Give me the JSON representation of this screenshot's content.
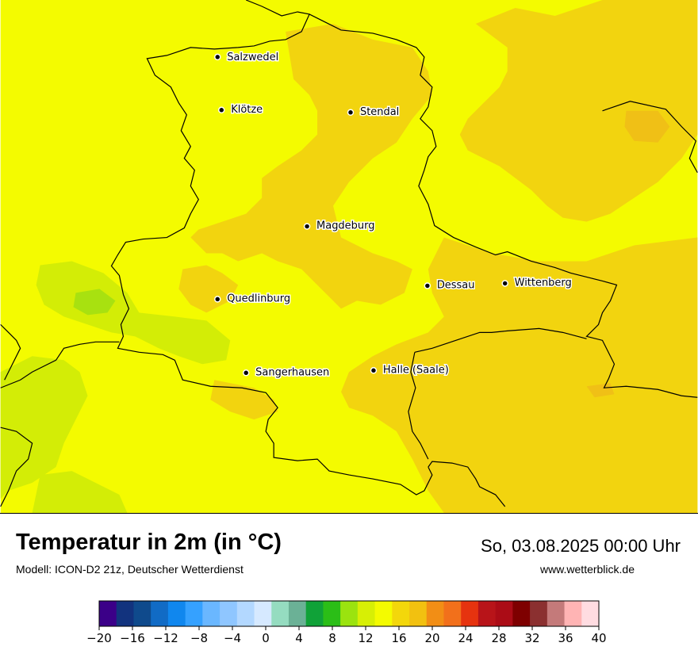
{
  "map": {
    "title": "Temperatur in 2m (in °C)",
    "model_line": "Modell: ICON-D2 21z, Deutscher Wetterdienst",
    "valid_time": "So, 03.08.2025 00:00 Uhr",
    "website": "www.wetterblick.de",
    "colors": {
      "t14_16": "#f4fb00",
      "t16_18": "#f2d40f",
      "t18_20": "#f0c016",
      "t12_14": "#d3ed06",
      "t10_12": "#a8e110",
      "border": "#000000"
    },
    "cities": [
      {
        "name": "Salzwedel",
        "icon": "city-dot-icon"
      },
      {
        "name": "Klötze",
        "icon": "city-dot-icon"
      },
      {
        "name": "Stendal",
        "icon": "city-dot-icon"
      },
      {
        "name": "Magdeburg",
        "icon": "city-dot-icon"
      },
      {
        "name": "Dessau",
        "icon": "city-dot-icon"
      },
      {
        "name": "Wittenberg",
        "icon": "city-dot-icon"
      },
      {
        "name": "Quedlinburg",
        "icon": "city-dot-icon"
      },
      {
        "name": "Sangerhausen",
        "icon": "city-dot-icon"
      },
      {
        "name": "Halle (Saale)",
        "icon": "city-dot-icon"
      }
    ]
  },
  "legend": {
    "unit": "°C",
    "range": [
      -20,
      40
    ],
    "step": 2,
    "colors": [
      "#3b0088",
      "#12337e",
      "#0f4a8c",
      "#116bc5",
      "#1087ee",
      "#35a1ff",
      "#6ab7ff",
      "#8fc6ff",
      "#b3d8ff",
      "#d6e9ff",
      "#95dcc0",
      "#6bb196",
      "#10a238",
      "#2bbe17",
      "#9be30f",
      "#d7ef05",
      "#f4fb00",
      "#f3d70b",
      "#f2c110",
      "#f28e15",
      "#f2701b",
      "#e6330f",
      "#b81419",
      "#ab0c16",
      "#7e0000",
      "#8b3030",
      "#c47a7a",
      "#ffb4b4",
      "#ffdce1"
    ],
    "ticks": [
      "−20",
      "−16",
      "−12",
      "−8",
      "−4",
      "0",
      "4",
      "8",
      "12",
      "16",
      "20",
      "24",
      "28",
      "32",
      "36",
      "40"
    ]
  }
}
